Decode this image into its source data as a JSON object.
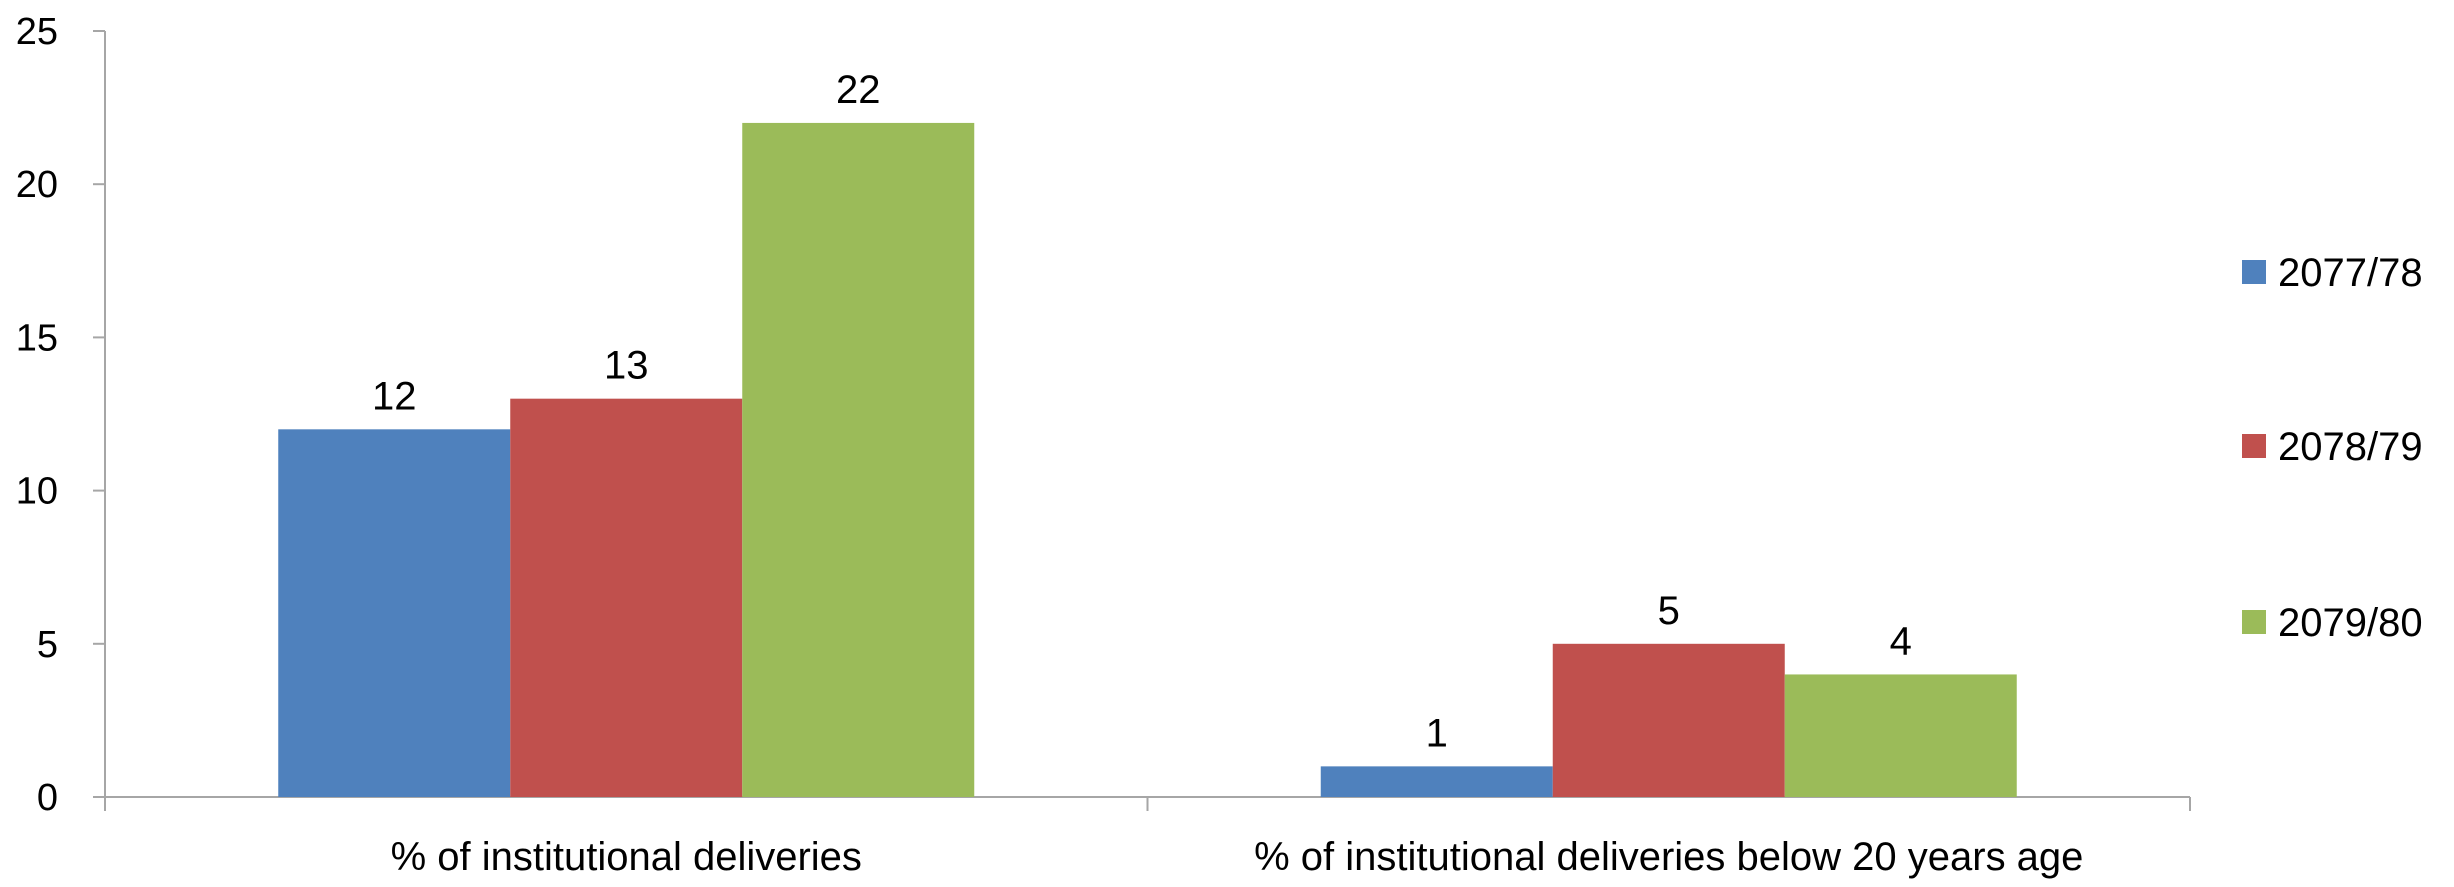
{
  "chart_data": {
    "type": "bar",
    "categories": [
      "% of institutional deliveries",
      "% of institutional deliveries below 20 years age"
    ],
    "series": [
      {
        "name": "2077/78",
        "values": [
          12,
          1
        ],
        "color": "#4F81BD"
      },
      {
        "name": "2078/79",
        "values": [
          13,
          5
        ],
        "color": "#C0504D"
      },
      {
        "name": "2079/80",
        "values": [
          22,
          4
        ],
        "color": "#9BBB59"
      }
    ],
    "ylim": [
      0,
      25
    ],
    "yticks": [
      0,
      5,
      10,
      15,
      20,
      25
    ],
    "data_labels": true,
    "grid": false,
    "legend_position": "right",
    "title": "",
    "xlabel": "",
    "ylabel": ""
  }
}
